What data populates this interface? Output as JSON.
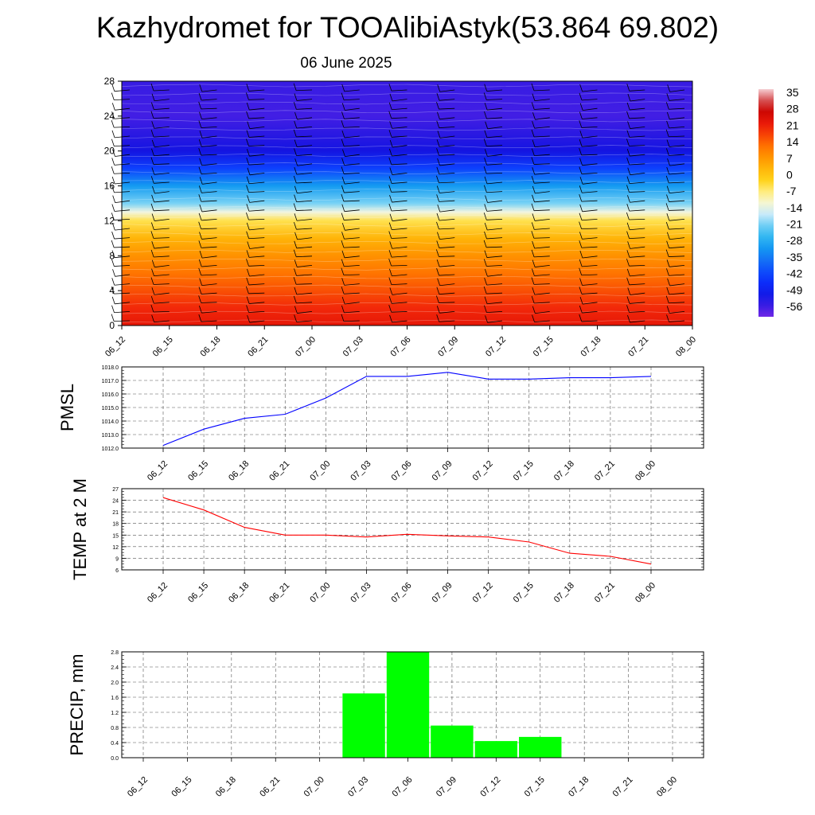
{
  "title": "Kazhydromet for TOOAlibiAstyk(53.864 69.802)",
  "subtitle": "06 June 2025",
  "time_labels": [
    "06_12",
    "06_15",
    "06_18",
    "06_21",
    "07_00",
    "07_03",
    "07_06",
    "07_09",
    "07_12",
    "07_15",
    "07_18",
    "07_21",
    "08_00"
  ],
  "chart_data": [
    {
      "type": "heatmap",
      "title": "06 June 2025",
      "x": [
        "06_12",
        "06_15",
        "06_18",
        "06_21",
        "07_00",
        "07_03",
        "07_06",
        "07_09",
        "07_12",
        "07_15",
        "07_18",
        "07_21",
        "08_00"
      ],
      "ylim": [
        0,
        28
      ],
      "yticks": [
        0,
        4,
        8,
        12,
        16,
        20,
        24,
        28
      ],
      "colorbar": {
        "labels": [
          "35",
          "28",
          "21",
          "14",
          "7",
          "0",
          "-7",
          "-14",
          "-21",
          "-28",
          "-35",
          "-42",
          "-49",
          "-56"
        ],
        "range": [
          -60,
          38
        ]
      },
      "profile": [
        {
          "y": 0,
          "t": 24
        },
        {
          "y": 2,
          "t": 21
        },
        {
          "y": 4,
          "t": 17
        },
        {
          "y": 6,
          "t": 13
        },
        {
          "y": 8,
          "t": 9
        },
        {
          "y": 10,
          "t": 4
        },
        {
          "y": 12,
          "t": -4
        },
        {
          "y": 13,
          "t": -12
        },
        {
          "y": 14,
          "t": -20
        },
        {
          "y": 16,
          "t": -30
        },
        {
          "y": 18,
          "t": -42
        },
        {
          "y": 20,
          "t": -52
        },
        {
          "y": 24,
          "t": -56
        },
        {
          "y": 28,
          "t": -55
        }
      ],
      "grid": false
    },
    {
      "type": "line",
      "ylabel": "PMSL",
      "x": [
        "06_12",
        "06_15",
        "06_18",
        "06_21",
        "07_00",
        "07_03",
        "07_06",
        "07_09",
        "07_12",
        "07_15",
        "07_18",
        "07_21",
        "08_00"
      ],
      "values": [
        1012.2,
        1013.4,
        1014.2,
        1014.5,
        1015.7,
        1017.3,
        1017.3,
        1017.6,
        1017.1,
        1017.1,
        1017.2,
        1017.2,
        1017.3
      ],
      "ylim": [
        1012.0,
        1018.0
      ],
      "yticks": [
        "1012.0",
        "1013.0",
        "1014.0",
        "1015.0",
        "1016.0",
        "1017.0",
        "1018.0"
      ],
      "color": "#0000ff",
      "grid": true
    },
    {
      "type": "line",
      "ylabel": "TEMP at 2 M",
      "x": [
        "06_12",
        "06_15",
        "06_18",
        "06_21",
        "07_00",
        "07_03",
        "07_06",
        "07_09",
        "07_12",
        "07_15",
        "07_18",
        "07_21",
        "08_00"
      ],
      "values": [
        24.7,
        21.5,
        17.0,
        15.0,
        15.0,
        14.5,
        15.2,
        14.8,
        14.5,
        13.2,
        10.3,
        9.5,
        7.5
      ],
      "ylim": [
        6,
        27
      ],
      "yticks": [
        "6",
        "9",
        "12",
        "15",
        "18",
        "21",
        "24",
        "27"
      ],
      "color": "#ff0000",
      "grid": true
    },
    {
      "type": "bar",
      "ylabel": "PRECIP, mm",
      "x": [
        "06_12",
        "06_15",
        "06_18",
        "06_21",
        "07_00",
        "07_03",
        "07_06",
        "07_09",
        "07_12",
        "07_15",
        "07_18",
        "07_21",
        "08_00"
      ],
      "values": [
        0,
        0,
        0,
        0,
        0,
        1.7,
        2.8,
        0.85,
        0.44,
        0.55,
        0,
        0,
        0
      ],
      "ylim": [
        0,
        2.8
      ],
      "yticks": [
        "0.0",
        "0.4",
        "0.8",
        "1.2",
        "1.6",
        "2.0",
        "2.4",
        "2.8"
      ],
      "color": "#00ff00",
      "grid": true
    }
  ]
}
